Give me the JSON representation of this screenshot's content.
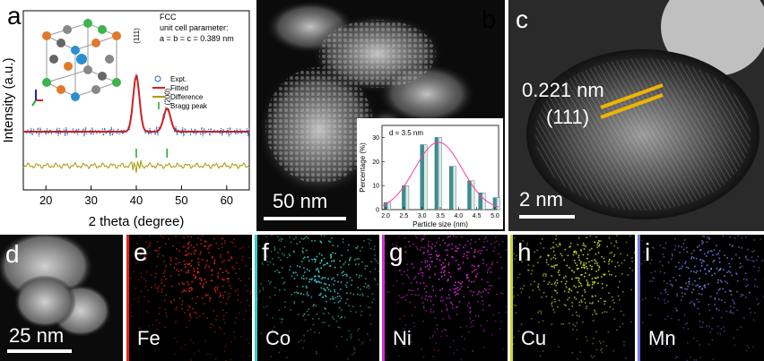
{
  "figure": {
    "panels": {
      "a": "a",
      "b": "b",
      "c": "c",
      "d": "d",
      "e": "e",
      "f": "f",
      "g": "g",
      "h": "h",
      "i": "i"
    }
  },
  "panel_a": {
    "crystal_text": [
      "FCC",
      "unit cell parameter:",
      "a = b = c = 0.389 nm"
    ]
  },
  "panel_b": {
    "scale_bar": "50 nm"
  },
  "panel_c": {
    "d_spacing": "0.221 nm",
    "plane": "(111)",
    "scale_bar": "2 nm",
    "fringe_color": "#f0b400"
  },
  "panel_d": {
    "scale_bar": "25 nm"
  },
  "maps": [
    {
      "element": "Fe",
      "color": "#e3231b"
    },
    {
      "element": "Co",
      "color": "#38c9c9"
    },
    {
      "element": "Ni",
      "color": "#d92ad9"
    },
    {
      "element": "Cu",
      "color": "#c9d62a"
    },
    {
      "element": "Mn",
      "color": "#7377e0"
    }
  ],
  "chart_data": [
    {
      "type": "line",
      "title": "",
      "xlabel": "2 theta (degree)",
      "ylabel": "Intensity (a.u.)",
      "xlim": [
        15,
        65
      ],
      "xticks": [
        20,
        30,
        40,
        50,
        60
      ],
      "peak_labels": [
        {
          "x": 40,
          "label": "(111)"
        },
        {
          "x": 46.8,
          "label": "(200)"
        }
      ],
      "series": [
        {
          "name": "Expt.",
          "color": "#1f6fc5",
          "marker": "o"
        },
        {
          "name": "Fitted",
          "color": "#d11f1f"
        },
        {
          "name": "Difference",
          "color": "#a89a00"
        },
        {
          "name": "Bragg peak",
          "color": "#2aa02a"
        }
      ],
      "bragg_peaks": [
        40,
        46.8
      ]
    },
    {
      "type": "bar",
      "title": "d = 3.5 nm",
      "xlabel": "Particle size (nm)",
      "ylabel": "Percentage (%)",
      "xlim": [
        1.9,
        5.1
      ],
      "ylim": [
        0,
        35
      ],
      "xticks": [
        "2.0",
        "2.5",
        "3.0",
        "3.5",
        "4.0",
        "4.5",
        "5.0"
      ],
      "yticks": [
        "0",
        "10",
        "20",
        "30"
      ],
      "categories": [
        2.0,
        2.1,
        2.5,
        2.6,
        3.0,
        3.1,
        3.4,
        3.5,
        3.8,
        3.9,
        4.3,
        4.4,
        4.6,
        4.7,
        5.0,
        5.1
      ],
      "values": [
        3,
        3,
        10,
        10,
        27,
        27,
        30,
        30,
        18,
        18,
        12,
        12,
        7,
        7,
        5,
        5
      ],
      "fit_curve": {
        "mean": 3.45,
        "sigma": 0.65,
        "peak": 28,
        "color": "#ff3aa0"
      }
    }
  ]
}
